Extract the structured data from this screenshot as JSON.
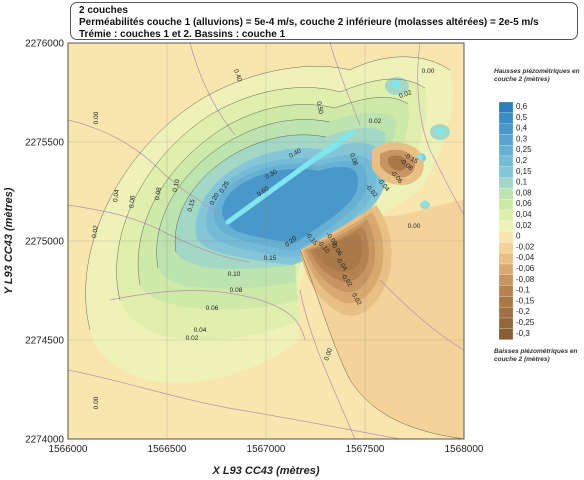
{
  "header": {
    "line1": "2 couches",
    "line2": "Perméabilités couche 1 (alluvions) = 5e-4 m/s, couche 2 inférieure (molasses altérées) = 2e-5 m/s",
    "line3": "Trémie : couches 1 et 2. Bassins : couche 1"
  },
  "chart_data": {
    "type": "contour",
    "xlabel": "X L93 CC43 (mètres)",
    "ylabel": "Y L93 CC43 (mètres)",
    "xlim": [
      1566000,
      1568000
    ],
    "ylim": [
      2274000,
      2276000
    ],
    "xticks": [
      "1566000",
      "1566500",
      "1567000",
      "1567500",
      "1568000"
    ],
    "yticks": [
      "2274000",
      "2274500",
      "2275000",
      "2275500",
      "2276000"
    ],
    "legend": {
      "title_top": "Hausses piézométriques en couche 2 (mètres)",
      "title_bottom": "Baisses piézométriques en couche 2 (mètres)",
      "levels": [
        "0,6",
        "0,5",
        "0,4",
        "0,3",
        "0,25",
        "0,2",
        "0,15",
        "0,1",
        "0,08",
        "0,06",
        "0,04",
        "0,02",
        "0",
        "-0,02",
        "-0,04",
        "-0,06",
        "-0,08",
        "-0,1",
        "-0,15",
        "-0,2",
        "-0,25",
        "-0,3"
      ],
      "colors": [
        "#2c7fb8",
        "#3b8cc2",
        "#4a98c9",
        "#58a4cf",
        "#66b0d4",
        "#74bbd8",
        "#84c6d8",
        "#a3d8c6",
        "#bde3ae",
        "#cfeaa8",
        "#e0efad",
        "#eff2b8",
        "#f9e6ae",
        "#f4d39a",
        "#e8bf85",
        "#d9a871",
        "#c79562",
        "#b5834f",
        "#a97a48",
        "#9e7043",
        "#93673d",
        "#885e37"
      ]
    },
    "contour_labels": [
      "0.02",
      "0.04",
      "0.06",
      "0.08",
      "0.10",
      "0.15",
      "0.20",
      "0.25",
      "0.30",
      "0.40",
      "0.50",
      "0.00",
      "0.02",
      "0.04",
      "0.06",
      "0.08",
      "0.10",
      "0.15",
      "0.20",
      "0.40",
      "0.60",
      "0.06",
      "0.02",
      "0.00",
      "0.00",
      "0.02",
      "-0.02",
      "-0.04",
      "-0.06",
      "-0.08",
      "-0.10",
      "-0.15",
      "0.00",
      "-0.02",
      "-0.04",
      "-0.06",
      "-0.08",
      "-0.15",
      "0.02",
      "0.00"
    ],
    "grid": true
  }
}
